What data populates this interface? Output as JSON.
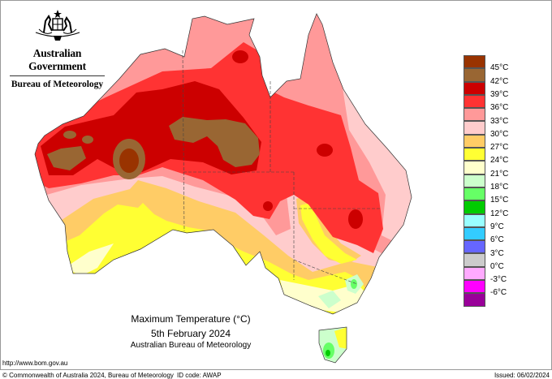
{
  "header": {
    "org": "Australian Government",
    "agency": "Bureau of Meteorology",
    "crest": "Commonwealth coat of arms"
  },
  "title": {
    "line1": "Maximum Temperature (°C)",
    "line2": "5th February 2024",
    "line3": "Australian Bureau of Meteorology"
  },
  "legend": {
    "colors": [
      "#993300",
      "#996633",
      "#cc0000",
      "#ff3333",
      "#ff9999",
      "#ffcccc",
      "#ffcc66",
      "#ffff33",
      "#ffffcc",
      "#ccffcc",
      "#66ff66",
      "#00cc00",
      "#99ffff",
      "#33ccff",
      "#6666ff",
      "#cccccc",
      "#ffaaff",
      "#ff00ff",
      "#990099"
    ],
    "labels": [
      "45°C",
      "42°C",
      "39°C",
      "36°C",
      "33°C",
      "30°C",
      "27°C",
      "24°C",
      "21°C",
      "18°C",
      "15°C",
      "12°C",
      "9°C",
      "6°C",
      "3°C",
      "0°C",
      "-3°C",
      "-6°C"
    ]
  },
  "footer": {
    "url": "http://www.bom.gov.au",
    "copyright": "© Commonwealth of Australia 2024, Bureau of Meteorology",
    "id_code": "ID code: AWAP",
    "issued": "Issued: 06/02/2024"
  }
}
